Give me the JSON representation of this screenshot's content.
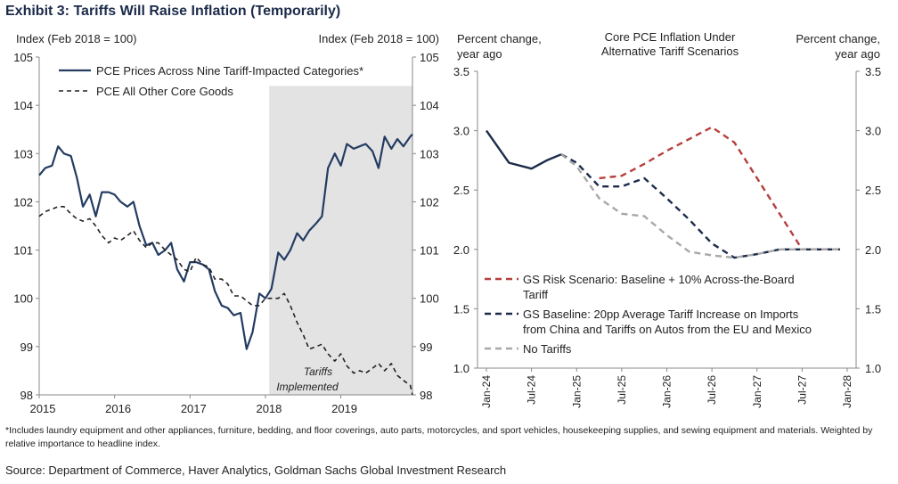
{
  "exhibit_title": "Exhibit 3: Tariffs Will Raise Inflation (Temporarily)",
  "footnote": "*Includes laundry equipment and other appliances, furniture, bedding, and floor coverings, auto parts, motorcycles, and sport vehicles, housekeeping supplies, and sewing equipment and materials. Weighted by relative importance to headline index.",
  "source": "Source: Department of Commerce, Haver Analytics, Goldman Sachs Global Investment Research",
  "chart_data": [
    {
      "type": "line",
      "ylabel_left": "Index (Feb 2018 = 100)",
      "ylabel_right": "Index (Feb 2018 = 100)",
      "ylim": [
        98,
        105
      ],
      "yticks": [
        98,
        99,
        100,
        101,
        102,
        103,
        104,
        105
      ],
      "xlim": [
        2015.0,
        2019.95
      ],
      "xticks": [
        2015,
        2016,
        2017,
        2018,
        2019
      ],
      "xtick_labels": [
        "2015",
        "2016",
        "2017",
        "2018",
        "2019"
      ],
      "shaded_region": {
        "from": 2018.05,
        "to": 2019.95,
        "label_line1": "Tariffs",
        "label_line2": "Implemented"
      },
      "legend_position": "top-left",
      "series": [
        {
          "name": "PCE Prices Across Nine Tariff-Impacted Categories*",
          "style": "solid",
          "color": "#243c62",
          "x": [
            2015.0,
            2015.08,
            2015.17,
            2015.25,
            2015.33,
            2015.42,
            2015.5,
            2015.58,
            2015.67,
            2015.75,
            2015.83,
            2015.92,
            2016.0,
            2016.08,
            2016.17,
            2016.25,
            2016.33,
            2016.42,
            2016.5,
            2016.58,
            2016.67,
            2016.75,
            2016.83,
            2016.92,
            2017.0,
            2017.08,
            2017.17,
            2017.25,
            2017.33,
            2017.42,
            2017.5,
            2017.58,
            2017.67,
            2017.75,
            2017.83,
            2017.92,
            2018.0,
            2018.08,
            2018.17,
            2018.25,
            2018.33,
            2018.42,
            2018.5,
            2018.58,
            2018.67,
            2018.75,
            2018.83,
            2018.92,
            2019.0,
            2019.08,
            2019.17,
            2019.25,
            2019.33,
            2019.42,
            2019.5,
            2019.58,
            2019.67,
            2019.75,
            2019.83,
            2019.92,
            2019.95
          ],
          "y": [
            102.55,
            102.7,
            102.75,
            103.15,
            103.0,
            102.95,
            102.5,
            101.9,
            102.15,
            101.7,
            102.2,
            102.2,
            102.15,
            102.0,
            101.9,
            102.0,
            101.5,
            101.1,
            101.15,
            100.9,
            101.0,
            101.15,
            100.6,
            100.35,
            100.75,
            100.75,
            100.7,
            100.6,
            100.15,
            99.85,
            99.8,
            99.65,
            99.7,
            98.95,
            99.3,
            100.1,
            100.0,
            100.2,
            100.95,
            100.8,
            101.0,
            101.35,
            101.2,
            101.4,
            101.55,
            101.7,
            102.7,
            103.0,
            102.75,
            103.2,
            103.1,
            103.15,
            103.2,
            103.05,
            102.7,
            103.35,
            103.1,
            103.3,
            103.15,
            103.35,
            103.4
          ]
        },
        {
          "name": "PCE All Other Core Goods",
          "style": "dashed",
          "color": "#222222",
          "x": [
            2015.0,
            2015.08,
            2015.17,
            2015.25,
            2015.33,
            2015.42,
            2015.5,
            2015.58,
            2015.67,
            2015.75,
            2015.83,
            2015.92,
            2016.0,
            2016.08,
            2016.17,
            2016.25,
            2016.33,
            2016.42,
            2016.5,
            2016.58,
            2016.67,
            2016.75,
            2016.83,
            2016.92,
            2017.0,
            2017.08,
            2017.17,
            2017.25,
            2017.33,
            2017.42,
            2017.5,
            2017.58,
            2017.67,
            2017.75,
            2017.83,
            2017.92,
            2018.0,
            2018.08,
            2018.17,
            2018.25,
            2018.33,
            2018.42,
            2018.5,
            2018.58,
            2018.67,
            2018.75,
            2018.83,
            2018.92,
            2019.0,
            2019.08,
            2019.17,
            2019.25,
            2019.33,
            2019.42,
            2019.5,
            2019.58,
            2019.67,
            2019.75,
            2019.83,
            2019.92,
            2019.95
          ],
          "y": [
            101.7,
            101.8,
            101.85,
            101.9,
            101.9,
            101.75,
            101.65,
            101.6,
            101.65,
            101.5,
            101.3,
            101.15,
            101.25,
            101.2,
            101.3,
            101.4,
            101.2,
            101.05,
            101.15,
            101.15,
            101.0,
            100.9,
            100.8,
            100.6,
            100.55,
            100.85,
            100.7,
            100.65,
            100.4,
            100.4,
            100.3,
            100.05,
            100.05,
            99.95,
            99.85,
            99.85,
            100.0,
            100.0,
            100.0,
            100.1,
            99.85,
            99.5,
            99.25,
            98.95,
            99.0,
            99.05,
            98.85,
            98.7,
            98.85,
            98.6,
            98.45,
            98.5,
            98.45,
            98.55,
            98.65,
            98.5,
            98.65,
            98.4,
            98.3,
            98.2,
            98.0
          ]
        }
      ]
    },
    {
      "type": "line",
      "title_line1": "Core PCE Inflation Under",
      "title_line2": "Alternative Tariff Scenarios",
      "ylabel_left_line1": "Percent change,",
      "ylabel_left_line2": "year ago",
      "ylabel_right_line1": "Percent change,",
      "ylabel_right_line2": "year ago",
      "ylim": [
        1.0,
        3.5
      ],
      "yticks": [
        1.0,
        1.5,
        2.0,
        2.5,
        3.0,
        3.5
      ],
      "ytick_labels": [
        "1.0",
        "1.5",
        "2.0",
        "2.5",
        "3.0",
        "3.5"
      ],
      "xlim": [
        2024.0,
        2028.0
      ],
      "xticks": [
        2024.0,
        2024.5,
        2025.0,
        2025.5,
        2026.0,
        2026.5,
        2027.0,
        2027.5,
        2028.0
      ],
      "xtick_labels": [
        "Jan-24",
        "Jul-24",
        "Jan-25",
        "Jul-25",
        "Jan-26",
        "Jul-26",
        "Jan-27",
        "Jul-27",
        "Jan-28"
      ],
      "legend_position": "bottom-left",
      "series": [
        {
          "name_line1": "GS Risk Scenario: Baseline + 10% Across-the-Board",
          "name_line2": "Tariff",
          "style": "dashed",
          "color": "#b5403d",
          "x": [
            2025.25,
            2025.5,
            2025.75,
            2026.0,
            2026.25,
            2026.5,
            2026.75,
            2027.0,
            2027.25,
            2027.5,
            2027.75,
            2027.92
          ],
          "y": [
            2.6,
            2.62,
            2.72,
            2.83,
            2.93,
            3.03,
            2.9,
            2.6,
            2.3,
            2.0,
            2.0,
            2.0
          ]
        },
        {
          "name_line1": "GS Baseline: 20pp Average Tariff Increase on Imports",
          "name_line2": "from China and Tariffs on Autos from the EU and Mexico",
          "style": "dashed",
          "color": "#1c2b4a",
          "x": [
            2024.83,
            2025.0,
            2025.25,
            2025.5,
            2025.75,
            2026.0,
            2026.25,
            2026.5,
            2026.75,
            2027.0,
            2027.25,
            2027.5,
            2027.75,
            2027.92
          ],
          "y": [
            2.8,
            2.73,
            2.53,
            2.53,
            2.6,
            2.43,
            2.25,
            2.05,
            1.93,
            1.96,
            2.0,
            2.0,
            2.0,
            2.0
          ]
        },
        {
          "name_line1": "No Tariffs",
          "name_line2": "",
          "style": "dashed",
          "color": "#a8a8a8",
          "x": [
            2024.83,
            2025.0,
            2025.25,
            2025.5,
            2025.75,
            2026.0,
            2026.25,
            2026.5,
            2026.75,
            2027.0,
            2027.25,
            2027.5,
            2027.75,
            2027.92
          ],
          "y": [
            2.8,
            2.7,
            2.43,
            2.3,
            2.28,
            2.12,
            1.98,
            1.95,
            1.93,
            1.96,
            2.0,
            2.0,
            2.0,
            2.0
          ]
        },
        {
          "name_line1": "",
          "name_line2": "",
          "style": "solid",
          "color": "#1c2b4a",
          "x": [
            2024.0,
            2024.25,
            2024.5,
            2024.67,
            2024.83
          ],
          "y": [
            3.0,
            2.73,
            2.68,
            2.75,
            2.8
          ]
        }
      ]
    }
  ]
}
